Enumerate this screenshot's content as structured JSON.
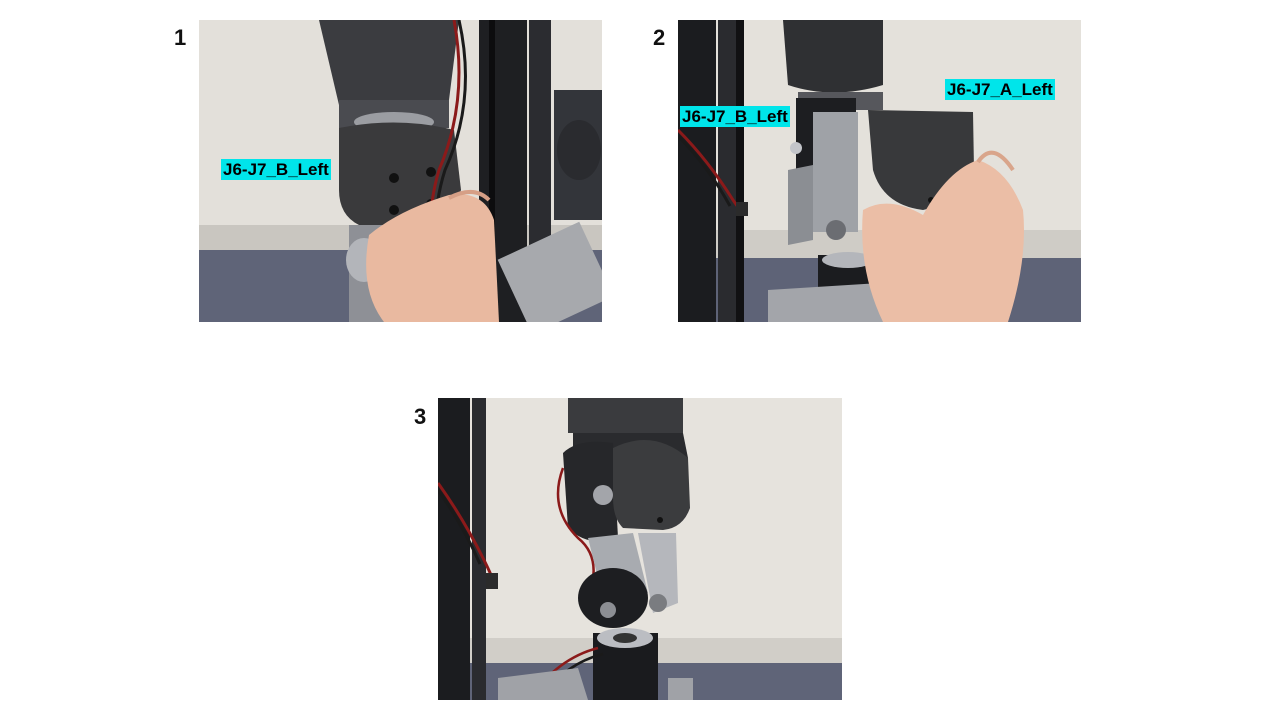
{
  "steps": [
    {
      "number": "1",
      "labels": [
        "J6-J7_B_Left"
      ]
    },
    {
      "number": "2",
      "labels": [
        "J6-J7_B_Left",
        "J6-J7_A_Left"
      ]
    },
    {
      "number": "3",
      "labels": []
    }
  ],
  "colors": {
    "label_bg": "#00e5ea",
    "label_text": "#000000",
    "part_color": "#3a3a3c"
  }
}
